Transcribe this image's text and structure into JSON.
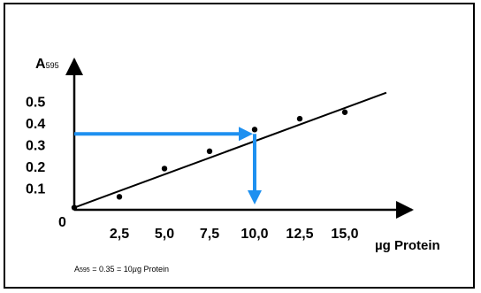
{
  "chart_data": {
    "type": "scatter",
    "ylabel_main": "A",
    "ylabel_sub": "595",
    "xlabel": "µg Protein",
    "origin_label": "0",
    "x_ticks": [
      "2,5",
      "5,0",
      "7,5",
      "10,0",
      "12,5",
      "15,0"
    ],
    "y_ticks": [
      "0.1",
      "0.2",
      "0.3",
      "0.4",
      "0.5"
    ],
    "xlim": [
      0,
      17.5
    ],
    "ylim": [
      0,
      0.6
    ],
    "points": [
      {
        "x": 0,
        "y": 0.01
      },
      {
        "x": 2.5,
        "y": 0.06
      },
      {
        "x": 5.0,
        "y": 0.19
      },
      {
        "x": 7.5,
        "y": 0.27
      },
      {
        "x": 10.0,
        "y": 0.37
      },
      {
        "x": 12.5,
        "y": 0.42
      },
      {
        "x": 15.0,
        "y": 0.45
      }
    ],
    "fit_line": {
      "x0": 0,
      "y0": 0.01,
      "x1": 17.3,
      "y1": 0.54
    },
    "reading": {
      "y": 0.35,
      "x": 10.0
    },
    "colors": {
      "reading_arrow": "#1e90f0",
      "axes": "#000000"
    },
    "note": {
      "a": "A",
      "a_sub": "595",
      "rest": " = 0.35  = 10",
      "mu": "µ",
      "unit": "g Protein"
    }
  }
}
